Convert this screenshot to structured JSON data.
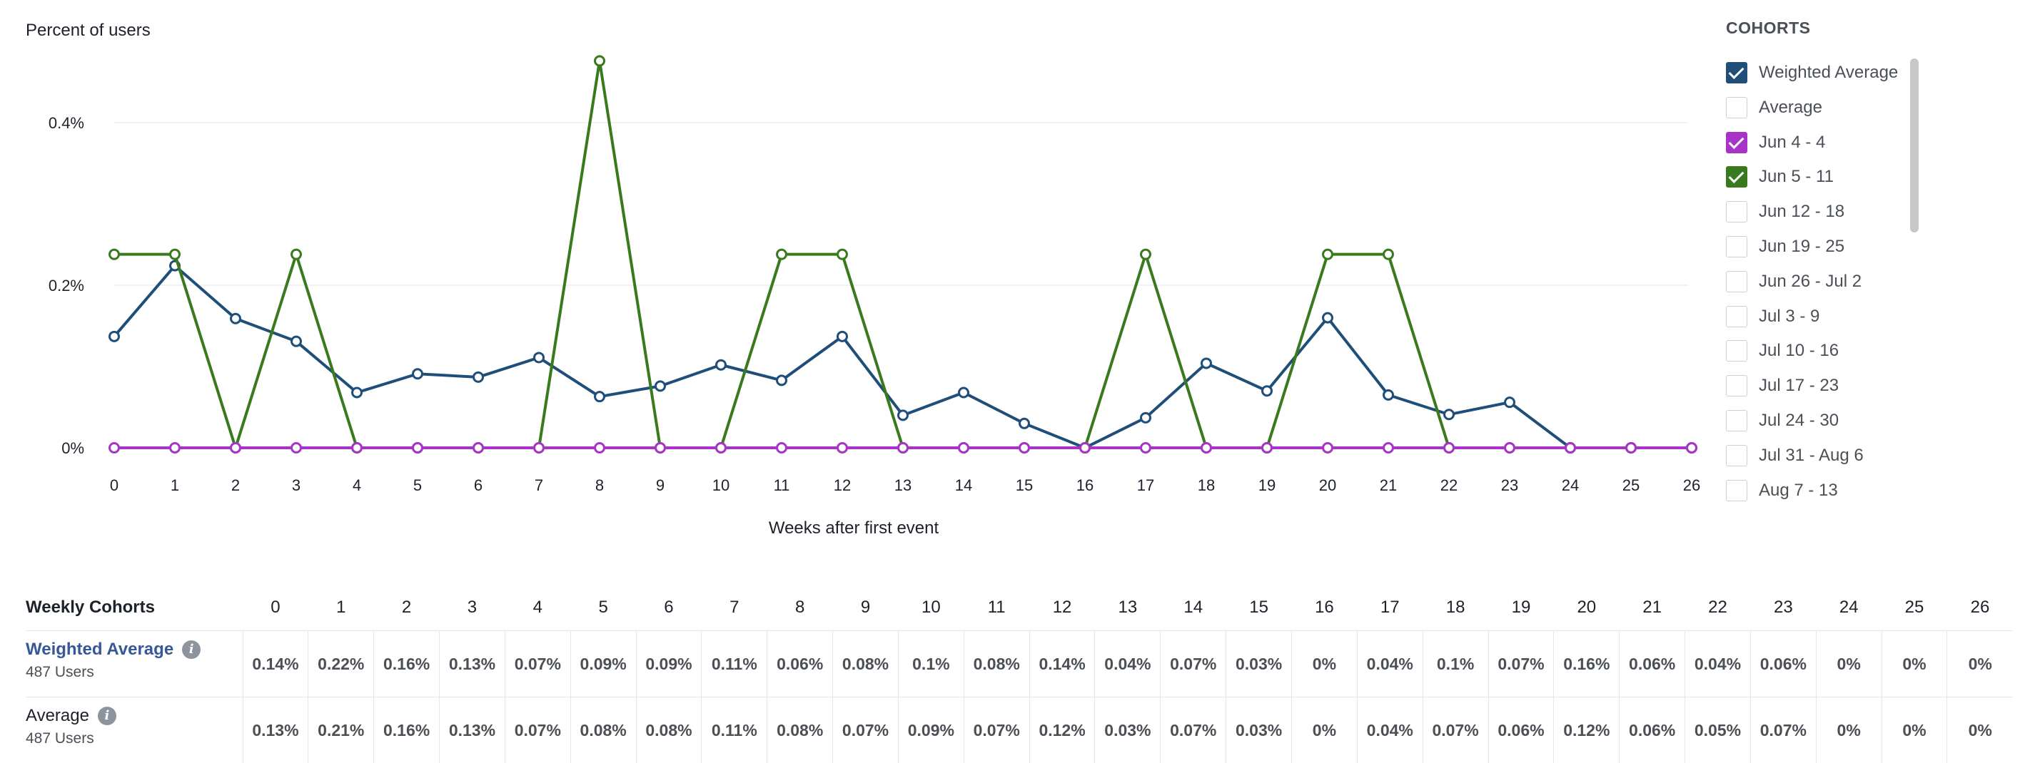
{
  "chart_data": {
    "type": "line",
    "ylabel": "Percent of users",
    "xlabel": "Weeks after first event",
    "x": [
      0,
      1,
      2,
      3,
      4,
      5,
      6,
      7,
      8,
      9,
      10,
      11,
      12,
      13,
      14,
      15,
      16,
      17,
      18,
      19,
      20,
      21,
      22,
      23,
      24,
      25,
      26
    ],
    "ylim": [
      0,
      0.49
    ],
    "yticks": [
      {
        "value": 0,
        "label": "0%"
      },
      {
        "value": 0.2,
        "label": "0.2%"
      },
      {
        "value": 0.4,
        "label": "0.4%"
      }
    ],
    "grid": true,
    "series": [
      {
        "name": "Weighted Average",
        "color": "#1f4e79",
        "values": [
          0.137,
          0.224,
          0.159,
          0.131,
          0.068,
          0.091,
          0.087,
          0.111,
          0.063,
          0.076,
          0.102,
          0.083,
          0.137,
          0.04,
          0.068,
          0.03,
          0.0,
          0.037,
          0.104,
          0.07,
          0.16,
          0.065,
          0.041,
          0.056,
          0.0,
          0.0,
          0.0
        ]
      },
      {
        "name": "Jun 5 - 11",
        "color": "#3a7a1e",
        "values": [
          0.238,
          0.238,
          0,
          0.238,
          0,
          0,
          0,
          0,
          0.476,
          0,
          0,
          0.238,
          0.238,
          0,
          0,
          0,
          0,
          0.238,
          0,
          0,
          0.238,
          0.238,
          0,
          0,
          0,
          0,
          0
        ]
      },
      {
        "name": "Jun 4 - 4",
        "color": "#a734c7",
        "values": [
          0,
          0,
          0,
          0,
          0,
          0,
          0,
          0,
          0,
          0,
          0,
          0,
          0,
          0,
          0,
          0,
          0,
          0,
          0,
          0,
          0,
          0,
          0,
          0,
          0,
          0,
          0
        ]
      }
    ]
  },
  "cohorts_panel": {
    "title": "COHORTS",
    "items": [
      {
        "label": "Weighted Average",
        "checked": true,
        "color": "#1f4e79"
      },
      {
        "label": "Average",
        "checked": false,
        "color": ""
      },
      {
        "label": "Jun 4 - 4",
        "checked": true,
        "color": "#a734c7"
      },
      {
        "label": "Jun 5 - 11",
        "checked": true,
        "color": "#3a7a1e"
      },
      {
        "label": "Jun 12 - 18",
        "checked": false,
        "color": ""
      },
      {
        "label": "Jun 19 - 25",
        "checked": false,
        "color": ""
      },
      {
        "label": "Jun 26 - Jul 2",
        "checked": false,
        "color": ""
      },
      {
        "label": "Jul 3 - 9",
        "checked": false,
        "color": ""
      },
      {
        "label": "Jul 10 - 16",
        "checked": false,
        "color": ""
      },
      {
        "label": "Jul 17 - 23",
        "checked": false,
        "color": ""
      },
      {
        "label": "Jul 24 - 30",
        "checked": false,
        "color": ""
      },
      {
        "label": "Jul 31 - Aug 6",
        "checked": false,
        "color": ""
      },
      {
        "label": "Aug 7 - 13",
        "checked": false,
        "color": ""
      }
    ]
  },
  "table": {
    "header_label": "Weekly Cohorts",
    "columns": [
      "0",
      "1",
      "2",
      "3",
      "4",
      "5",
      "6",
      "7",
      "8",
      "9",
      "10",
      "11",
      "12",
      "13",
      "14",
      "15",
      "16",
      "17",
      "18",
      "19",
      "20",
      "21",
      "22",
      "23",
      "24",
      "25",
      "26"
    ],
    "rows": [
      {
        "name": "Weighted Average",
        "sub": "487 Users",
        "values": [
          "0.14%",
          "0.22%",
          "0.16%",
          "0.13%",
          "0.07%",
          "0.09%",
          "0.09%",
          "0.11%",
          "0.06%",
          "0.08%",
          "0.1%",
          "0.08%",
          "0.14%",
          "0.04%",
          "0.07%",
          "0.03%",
          "0%",
          "0.04%",
          "0.1%",
          "0.07%",
          "0.16%",
          "0.06%",
          "0.04%",
          "0.06%",
          "0%",
          "0%",
          "0%"
        ]
      },
      {
        "name": "Average",
        "sub": "487 Users",
        "values": [
          "0.13%",
          "0.21%",
          "0.16%",
          "0.13%",
          "0.07%",
          "0.08%",
          "0.08%",
          "0.11%",
          "0.08%",
          "0.07%",
          "0.09%",
          "0.07%",
          "0.12%",
          "0.03%",
          "0.07%",
          "0.03%",
          "0%",
          "0.04%",
          "0.07%",
          "0.06%",
          "0.12%",
          "0.06%",
          "0.05%",
          "0.07%",
          "0%",
          "0%",
          "0%"
        ]
      }
    ]
  }
}
